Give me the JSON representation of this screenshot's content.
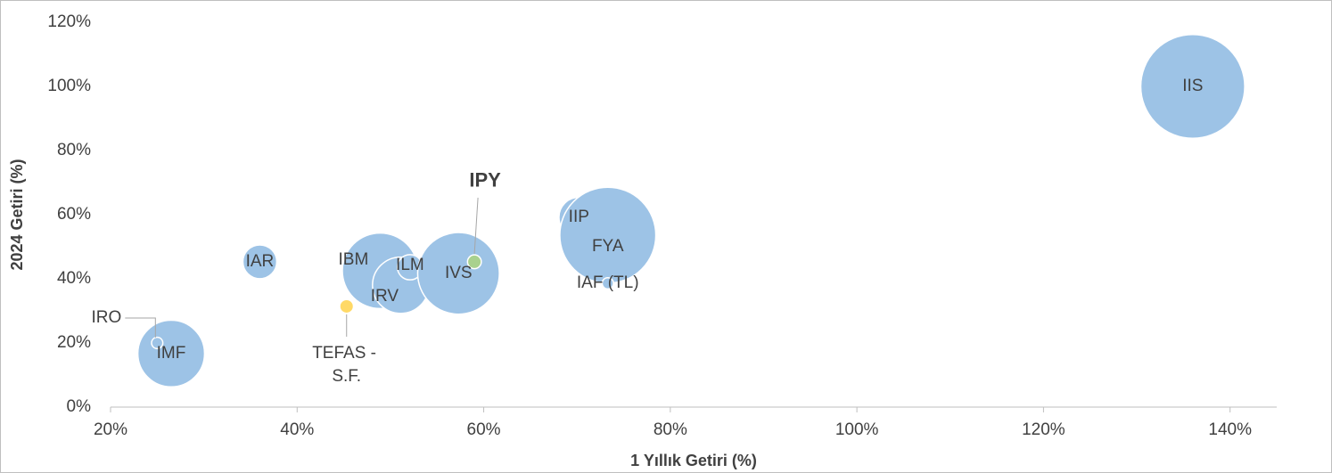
{
  "chart_data": {
    "type": "bubble",
    "x_label": "1 Yıllık Getiri (%)",
    "y_label": "2024 Getiri (%)",
    "labels": [
      "IIS",
      "IMF",
      "IRO",
      "IAR",
      "IBM",
      "IRV",
      "ILM",
      "IVS",
      "IPY",
      "TEFAS - S.F.",
      "IIP",
      "FYA",
      "IAF (TL)"
    ],
    "x": [
      136,
      26.5,
      25,
      36,
      48.9,
      51.1,
      52.1,
      57.3,
      59,
      45.3,
      70.2,
      73.3,
      73.3
    ],
    "y": [
      100,
      16.7,
      20,
      45.3,
      42.5,
      38,
      43.6,
      41.7,
      45.3,
      31.4,
      59.2,
      53.6,
      38.6
    ],
    "sizes": [
      34,
      14,
      0.4,
      3.6,
      18,
      10,
      2,
      21,
      0.6,
      0.6,
      5,
      29,
      0.4
    ],
    "colors": [
      "#9dc3e6",
      "#9dc3e6",
      "#9dc3e6",
      "#9dc3e6",
      "#9dc3e6",
      "#9dc3e6",
      "#9dc3e6",
      "#9dc3e6",
      "#a9d18e",
      "#ffd966",
      "#9dc3e6",
      "#9dc3e6",
      "#9dc3e6"
    ],
    "xlim": [
      20,
      145
    ],
    "ylim": [
      0,
      120
    ],
    "xticks": [
      {
        "value": 20,
        "label": "20%"
      },
      {
        "value": 40,
        "label": "40%"
      },
      {
        "value": 60,
        "label": "60%"
      },
      {
        "value": 80,
        "label": "80%"
      },
      {
        "value": 100,
        "label": "100%"
      },
      {
        "value": 120,
        "label": "120%"
      },
      {
        "value": 140,
        "label": "140%"
      }
    ],
    "yticks": [
      {
        "value": 0,
        "label": "0%"
      },
      {
        "value": 20,
        "label": "20%"
      },
      {
        "value": 40,
        "label": "40%"
      },
      {
        "value": 60,
        "label": "60%"
      },
      {
        "value": 80,
        "label": "80%"
      },
      {
        "value": 100,
        "label": "100%"
      },
      {
        "value": 120,
        "label": "120%"
      }
    ],
    "grid": false
  }
}
